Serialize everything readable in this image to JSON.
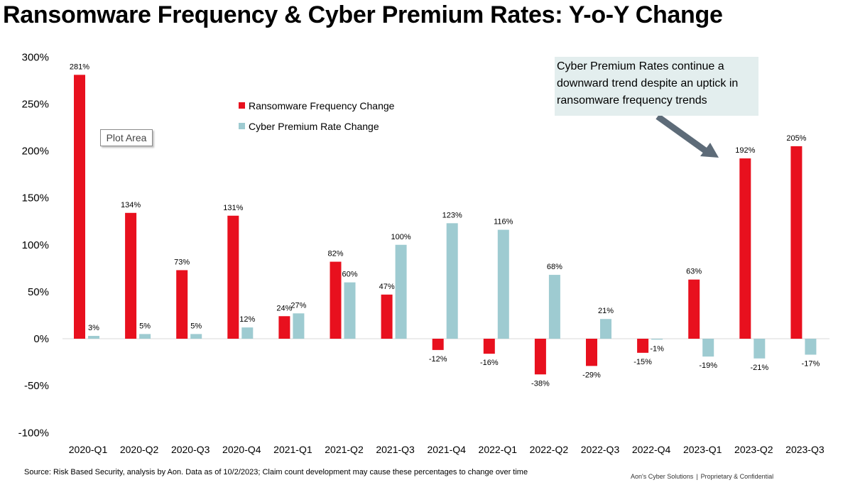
{
  "title": "Ransomware Frequency & Cyber Premium Rates: Y-o-Y Change",
  "legend": {
    "ransomware_label": "Ransomware Frequency Change",
    "premium_label": "Cyber Premium Rate Change"
  },
  "plot_area_tooltip": "Plot Area",
  "annotation": "Cyber Premium Rates continue a downward trend despite an uptick in ransomware frequency trends",
  "source": "Source: Risk Based Security, analysis by Aon. Data as of 10/2/2023; Claim count development may cause these percentages to change over time",
  "footer": {
    "company": "Aon's Cyber Solutions",
    "separator": "|",
    "confidential": "Proprietary & Confidential"
  },
  "colors": {
    "ransomware": "#e8101e",
    "premium": "#9ecbd1",
    "arrow": "#5d6b78",
    "annotation_bg": "#e3eeee"
  },
  "chart_data": {
    "type": "bar",
    "title": "Ransomware Frequency & Cyber Premium Rates: Y-o-Y Change",
    "xlabel": "",
    "ylabel": "",
    "ylim": [
      -100,
      300
    ],
    "yticks": [
      -100,
      -50,
      0,
      50,
      100,
      150,
      200,
      250,
      300
    ],
    "ytick_labels": [
      "-100%",
      "-50%",
      "0%",
      "50%",
      "100%",
      "150%",
      "200%",
      "250%",
      "300%"
    ],
    "categories": [
      "2020-Q1",
      "2020-Q2",
      "2020-Q3",
      "2020-Q4",
      "2021-Q1",
      "2021-Q2",
      "2021-Q3",
      "2021-Q4",
      "2022-Q1",
      "2022-Q2",
      "2022-Q3",
      "2022-Q4",
      "2023-Q1",
      "2023-Q2",
      "2023-Q3"
    ],
    "series": [
      {
        "name": "Ransomware Frequency Change",
        "values": [
          281,
          134,
          73,
          131,
          24,
          82,
          47,
          -12,
          -16,
          -38,
          -29,
          -15,
          63,
          192,
          205
        ],
        "labels": [
          "281%",
          "134%",
          "73%",
          "131%",
          "24%",
          "82%",
          "47%",
          "-12%",
          "-16%",
          "-38%",
          "-29%",
          "-15%",
          "63%",
          "192%",
          "205%"
        ]
      },
      {
        "name": "Cyber Premium Rate Change",
        "values": [
          3,
          5,
          5,
          12,
          27,
          60,
          100,
          123,
          116,
          68,
          21,
          -1,
          -19,
          -21,
          -17
        ],
        "labels": [
          "3%",
          "5%",
          "5%",
          "12%",
          "27%",
          "60%",
          "100%",
          "123%",
          "116%",
          "68%",
          "21%",
          "-1%",
          "-19%",
          "-21%",
          "-17%"
        ]
      }
    ],
    "grid": false,
    "legend_position": "upper-left"
  }
}
